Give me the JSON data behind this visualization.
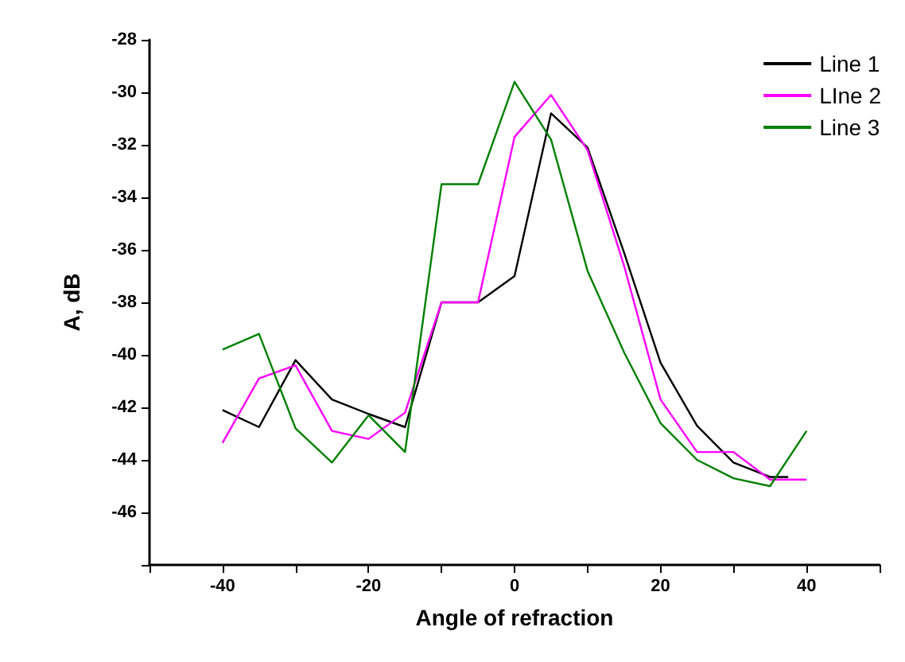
{
  "chart_data": {
    "type": "line",
    "xlabel": "Angle of refraction",
    "ylabel": "A, dB",
    "x": [
      -40,
      -35,
      -30,
      -25,
      -20,
      -15,
      -10,
      -5,
      0,
      5,
      10,
      15,
      20,
      25,
      30,
      35,
      40
    ],
    "series": [
      {
        "name": "Line 1",
        "color": "#000000",
        "x": [
          -40,
          -35,
          -30,
          -25,
          -20,
          -15,
          -10,
          -5,
          0,
          5,
          10,
          15,
          20,
          25,
          30,
          35,
          37.5
        ],
        "values": [
          -42.1,
          -42.75,
          -40.2,
          -41.7,
          -42.25,
          -42.75,
          -38.0,
          -38.0,
          -37.0,
          -30.8,
          -32.1,
          -36.1,
          -40.3,
          -42.7,
          -44.1,
          -44.65,
          -44.65
        ]
      },
      {
        "name": "LIne 2",
        "color": "#ff00ff",
        "values": [
          -43.35,
          -40.9,
          -40.4,
          -42.9,
          -43.2,
          -42.2,
          -38.0,
          -38.0,
          -31.7,
          -30.1,
          -32.2,
          -36.6,
          -41.7,
          -43.7,
          -43.7,
          -44.75,
          -44.75
        ]
      },
      {
        "name": "Line 3",
        "color": "#008000",
        "values": [
          -39.8,
          -39.2,
          -42.8,
          -44.1,
          -42.3,
          -43.7,
          -33.5,
          -33.5,
          -29.6,
          -31.8,
          -36.8,
          -39.9,
          -42.6,
          -44.0,
          -44.7,
          -45.0,
          -42.9
        ]
      }
    ],
    "xlim": [
      -50,
      50
    ],
    "xticks": [
      {
        "value": -50,
        "label": null
      },
      -40,
      {
        "value": -30,
        "label": null
      },
      -20,
      {
        "value": -10,
        "label": null
      },
      0,
      {
        "value": 10,
        "label": null
      },
      20,
      {
        "value": 30,
        "label": null
      },
      40,
      {
        "value": 50,
        "label": null
      }
    ],
    "ylim": [
      -48,
      -28
    ],
    "yticks": [
      {
        "value": -48,
        "label": null
      },
      -46,
      -44,
      -42,
      -40,
      -38,
      -36,
      -34,
      -32,
      -30,
      -28
    ],
    "legend": "top right",
    "grid": false,
    "marker": "none",
    "line_style": "solid"
  }
}
